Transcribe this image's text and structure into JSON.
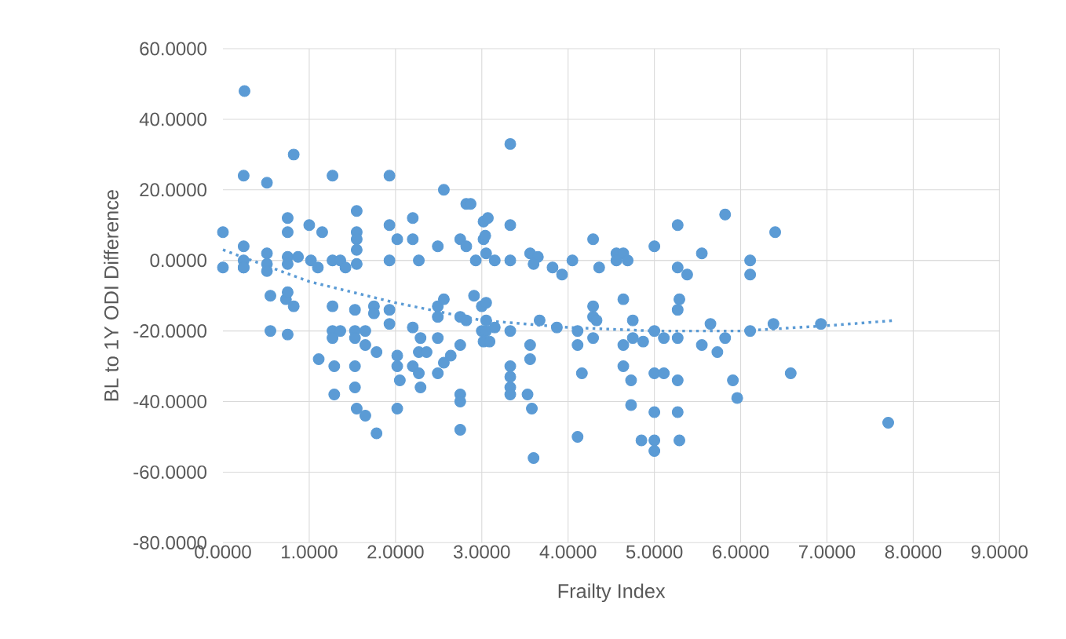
{
  "chart_data": {
    "type": "scatter",
    "xlabel": "Frailty Index",
    "ylabel": "BL to 1Y ODI Difference",
    "xlim": [
      0,
      9
    ],
    "ylim": [
      -80,
      60
    ],
    "xticks": [
      {
        "value": 0,
        "label": "0.0000"
      },
      {
        "value": 1,
        "label": "1.0000"
      },
      {
        "value": 2,
        "label": "2.0000"
      },
      {
        "value": 3,
        "label": "3.0000"
      },
      {
        "value": 4,
        "label": "4.0000"
      },
      {
        "value": 5,
        "label": "5.0000"
      },
      {
        "value": 6,
        "label": "6.0000"
      },
      {
        "value": 7,
        "label": "7.0000"
      },
      {
        "value": 8,
        "label": "8.0000"
      },
      {
        "value": 9,
        "label": "9.0000"
      }
    ],
    "yticks": [
      {
        "value": -80,
        "label": "-80.0000"
      },
      {
        "value": -60,
        "label": "-60.0000"
      },
      {
        "value": -40,
        "label": "-40.0000"
      },
      {
        "value": -20,
        "label": "-20.0000"
      },
      {
        "value": 0,
        "label": "0.0000"
      },
      {
        "value": 20,
        "label": "20.0000"
      },
      {
        "value": 40,
        "label": "40.0000"
      },
      {
        "value": 60,
        "label": "60.0000"
      }
    ],
    "grid": true,
    "series": [
      {
        "color": "#5b9bd5",
        "marker": "circle",
        "x": [
          0.25,
          0.24,
          0.82,
          0.51,
          1.27,
          1.93,
          2.56,
          2.82,
          0.0,
          0.0,
          0.24,
          0.24,
          0.24,
          0.24,
          0.51,
          0.51,
          0.51,
          0.75,
          0.75,
          0.75,
          0.75,
          1.0,
          1.15,
          0.87,
          1.02,
          1.1,
          1.27,
          1.36,
          1.42,
          1.55,
          1.55,
          1.55,
          1.55,
          1.55,
          1.93,
          2.02,
          2.2,
          2.2,
          2.27,
          1.93,
          2.49,
          2.75,
          2.82,
          2.93,
          3.02,
          3.02,
          3.33,
          2.87,
          3.07,
          3.04,
          3.33,
          3.05,
          3.15,
          3.33,
          3.56,
          3.65,
          3.6,
          3.82,
          3.93,
          4.05,
          4.29,
          4.36,
          4.56,
          4.64,
          4.69,
          4.56,
          5.0,
          5.27,
          5.27,
          5.38,
          5.55,
          5.82,
          6.11,
          6.11,
          6.4,
          0.55,
          0.73,
          0.82,
          0.75,
          0.55,
          0.75,
          1.27,
          1.53,
          1.27,
          1.27,
          1.36,
          1.53,
          1.53,
          1.65,
          1.65,
          1.78,
          1.11,
          1.29,
          1.53,
          1.29,
          1.53,
          1.55,
          1.65,
          1.78,
          1.75,
          1.75,
          1.93,
          1.93,
          2.02,
          2.02,
          2.05,
          2.02,
          2.2,
          2.29,
          2.27,
          2.36,
          2.2,
          2.27,
          2.29,
          2.49,
          2.49,
          2.56,
          2.64,
          2.49,
          2.49,
          2.56,
          2.75,
          2.82,
          2.75,
          2.75,
          2.75,
          2.75,
          3.0,
          3.02,
          3.0,
          2.91,
          3.05,
          3.05,
          3.05,
          3.09,
          3.15,
          3.33,
          3.33,
          3.33,
          3.33,
          3.33,
          3.56,
          3.56,
          3.53,
          3.58,
          3.6,
          3.67,
          3.87,
          4.11,
          4.11,
          4.16,
          4.11,
          4.29,
          4.29,
          4.33,
          4.29,
          4.64,
          4.64,
          4.64,
          4.73,
          4.73,
          4.75,
          4.75,
          4.87,
          5.0,
          5.11,
          5.27,
          5.0,
          5.11,
          5.27,
          5.0,
          5.27,
          4.85,
          5.0,
          5.0,
          5.29,
          5.27,
          5.29,
          5.55,
          5.73,
          5.65,
          5.82,
          5.91,
          5.96,
          6.11,
          6.38,
          6.58,
          6.93,
          7.71
        ],
        "values": [
          48,
          24,
          30,
          22,
          24,
          24,
          20,
          16,
          8,
          -2,
          4,
          0,
          -2,
          -2,
          2,
          -1,
          -3,
          12,
          8,
          1,
          -1,
          10,
          8,
          1,
          0,
          -2,
          0,
          0,
          -2,
          14,
          8,
          6,
          3,
          -1,
          10,
          6,
          12,
          6,
          0,
          0,
          4,
          6,
          4,
          0,
          6,
          11,
          33,
          16,
          12,
          7,
          10,
          2,
          0,
          0,
          2,
          1,
          -1,
          -2,
          -4,
          0,
          6,
          -2,
          2,
          2,
          0,
          0,
          4,
          10,
          -2,
          -4,
          2,
          13,
          0,
          -4,
          8,
          -10,
          -11,
          -13,
          -9,
          -20,
          -21,
          -13,
          -14,
          -20,
          -22,
          -20,
          -20,
          -22,
          -20,
          -24,
          -26,
          -28,
          -30,
          -30,
          -38,
          -36,
          -42,
          -44,
          -49,
          -13,
          -15,
          -14,
          -18,
          -27,
          -30,
          -34,
          -42,
          -19,
          -22,
          -26,
          -26,
          -30,
          -32,
          -36,
          -22,
          -32,
          -29,
          -27,
          -13,
          -16,
          -11,
          -16,
          -17,
          -24,
          -38,
          -40,
          -48,
          -20,
          -23,
          -13,
          -10,
          -12,
          -17,
          -20,
          -23,
          -19,
          -20,
          -30,
          -33,
          -36,
          -38,
          -24,
          -28,
          -38,
          -42,
          -56,
          -17,
          -19,
          -20,
          -24,
          -32,
          -50,
          -13,
          -16,
          -17,
          -22,
          -11,
          -24,
          -30,
          -34,
          -41,
          -17,
          -22,
          -23,
          -20,
          -22,
          -22,
          -32,
          -32,
          -34,
          -43,
          -43,
          -51,
          -51,
          -54,
          -51,
          -14,
          -11,
          -24,
          -26,
          -18,
          -22,
          -34,
          -39,
          -20,
          -18,
          -32,
          -18,
          -46
        ]
      },
      {
        "type": "line",
        "color": "#5b9bd5",
        "marker": "none",
        "line_style": "dotted",
        "x": [
          0,
          1,
          2,
          3,
          4,
          5,
          6,
          7,
          7.8
        ],
        "values": [
          3,
          -6,
          -12,
          -17,
          -19,
          -20,
          -20,
          -18.5,
          -17
        ]
      }
    ]
  }
}
